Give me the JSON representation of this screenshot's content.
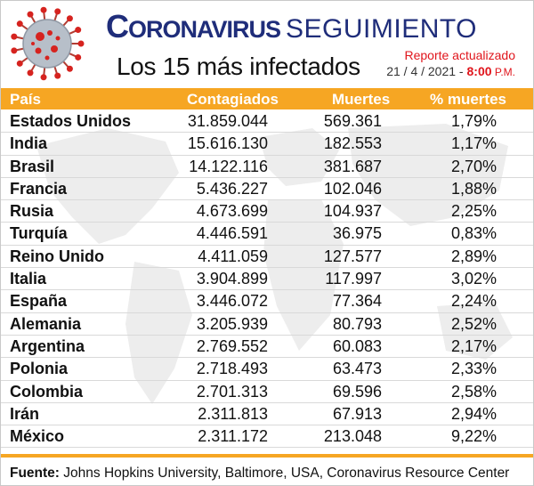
{
  "header": {
    "title_cap": "C",
    "title_rest": "ORONAVIRUS",
    "title_suffix": "SEGUIMIENTO",
    "subtitle": "Los 15 más infectados",
    "report_label": "Reporte actualizado",
    "report_date": "21 / 4 / 2021 - ",
    "report_time": "8:00",
    "report_ampm": " P.M."
  },
  "table": {
    "columns": [
      "País",
      "Contagiados",
      "Muertes",
      "% muertes"
    ],
    "rows": [
      {
        "country": "Estados Unidos",
        "cases": "31.859.044",
        "deaths": "569.361",
        "pct": "1,79%"
      },
      {
        "country": "India",
        "cases": "15.616.130",
        "deaths": "182.553",
        "pct": "1,17%"
      },
      {
        "country": "Brasil",
        "cases": "14.122.116",
        "deaths": "381.687",
        "pct": "2,70%"
      },
      {
        "country": "Francia",
        "cases": "5.436.227",
        "deaths": "102.046",
        "pct": "1,88%"
      },
      {
        "country": "Rusia",
        "cases": "4.673.699",
        "deaths": "104.937",
        "pct": "2,25%"
      },
      {
        "country": "Turquía",
        "cases": "4.446.591",
        "deaths": "36.975",
        "pct": "0,83%"
      },
      {
        "country": "Reino Unido",
        "cases": "4.411.059",
        "deaths": "127.577",
        "pct": "2,89%"
      },
      {
        "country": "Italia",
        "cases": "3.904.899",
        "deaths": "117.997",
        "pct": "3,02%"
      },
      {
        "country": "España",
        "cases": "3.446.072",
        "deaths": "77.364",
        "pct": "2,24%"
      },
      {
        "country": "Alemania",
        "cases": "3.205.939",
        "deaths": "80.793",
        "pct": "2,52%"
      },
      {
        "country": "Argentina",
        "cases": "2.769.552",
        "deaths": "60.083",
        "pct": "2,17%"
      },
      {
        "country": "Polonia",
        "cases": "2.718.493",
        "deaths": "63.473",
        "pct": "2,33%"
      },
      {
        "country": "Colombia",
        "cases": "2.701.313",
        "deaths": "69.596",
        "pct": "2,58%"
      },
      {
        "country": "Irán",
        "cases": "2.311.813",
        "deaths": "67.913",
        "pct": "2,94%"
      },
      {
        "country": "México",
        "cases": "2.311.172",
        "deaths": "213.048",
        "pct": "9,22%"
      }
    ]
  },
  "footer": {
    "label": "Fuente:",
    "text": " Johns Hopkins University, Baltimore, USA, Coronavirus Resource Center"
  },
  "colors": {
    "title": "#1f2d7a",
    "accent_orange": "#f6a623",
    "accent_red": "#e0151c",
    "virus_body": "#b7bfc9",
    "virus_spikes": "#d6231f"
  },
  "icons": {
    "header_image": "coronavirus-icon",
    "background": "world-map-icon"
  }
}
